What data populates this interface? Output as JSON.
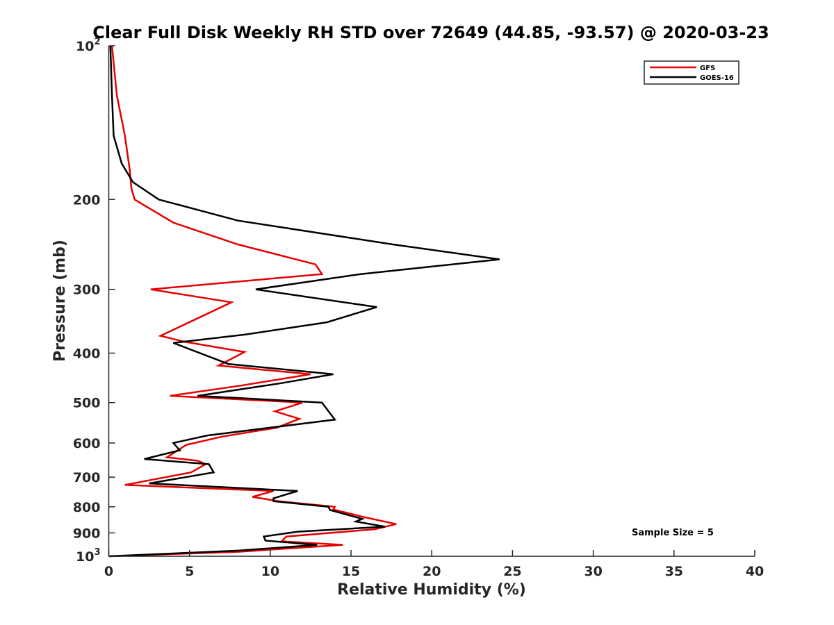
{
  "chart_data": {
    "type": "line",
    "title": "Clear Full Disk Weekly RH STD over 72649 (44.85, -93.57) @ 2020-03-23",
    "xlabel": "Relative Humidity (%)",
    "ylabel": "Pressure (mb)",
    "xlim": [
      0,
      40
    ],
    "ylim": [
      100,
      1000
    ],
    "y_scale": "log",
    "y_reversed": true,
    "x_ticks": [
      "0",
      "5",
      "10",
      "15",
      "20",
      "25",
      "30",
      "35",
      "40"
    ],
    "y_ticks": [
      {
        "value": 100,
        "base": "10",
        "exp": "2"
      },
      {
        "value": 200,
        "label": "200"
      },
      {
        "value": 300,
        "label": "300"
      },
      {
        "value": 400,
        "label": "400"
      },
      {
        "value": 500,
        "label": "500"
      },
      {
        "value": 600,
        "label": "600"
      },
      {
        "value": 700,
        "label": "700"
      },
      {
        "value": 800,
        "label": "800"
      },
      {
        "value": 900,
        "label": "900"
      },
      {
        "value": 1000,
        "base": "10",
        "exp": "3"
      }
    ],
    "grid": false,
    "legend_position": "top-right",
    "annotation": "Sample Size = 5",
    "series": [
      {
        "name": "GFS",
        "color": "#e60000",
        "points": [
          [
            0.2,
            100
          ],
          [
            0.5,
            125
          ],
          [
            1.0,
            150
          ],
          [
            1.3,
            175
          ],
          [
            1.4,
            190
          ],
          [
            1.6,
            200
          ],
          [
            4.0,
            222
          ],
          [
            8.0,
            245
          ],
          [
            12.8,
            268
          ],
          [
            13.2,
            280
          ],
          [
            2.6,
            300
          ],
          [
            7.6,
            318
          ],
          [
            3.2,
            370
          ],
          [
            4.7,
            380
          ],
          [
            8.4,
            398
          ],
          [
            6.8,
            423
          ],
          [
            12.5,
            440
          ],
          [
            8.2,
            463
          ],
          [
            3.8,
            485
          ],
          [
            12.0,
            500
          ],
          [
            10.3,
            520
          ],
          [
            11.8,
            538
          ],
          [
            10.4,
            560
          ],
          [
            7.0,
            583
          ],
          [
            4.8,
            605
          ],
          [
            3.6,
            640
          ],
          [
            5.5,
            650
          ],
          [
            6.0,
            660
          ],
          [
            5.1,
            685
          ],
          [
            1.0,
            725
          ],
          [
            10.2,
            745
          ],
          [
            8.9,
            765
          ],
          [
            10.5,
            780
          ],
          [
            14.0,
            800
          ],
          [
            13.9,
            810
          ],
          [
            15.8,
            838
          ],
          [
            17.8,
            865
          ],
          [
            16.5,
            885
          ],
          [
            11.0,
            915
          ],
          [
            10.7,
            935
          ],
          [
            14.5,
            950
          ],
          [
            8.0,
            980
          ],
          [
            0.0,
            1000
          ]
        ]
      },
      {
        "name": "GOES-16",
        "color": "#000000",
        "points": [
          [
            0.1,
            100
          ],
          [
            0.2,
            125
          ],
          [
            0.3,
            150
          ],
          [
            0.8,
            170
          ],
          [
            1.5,
            185
          ],
          [
            3.1,
            200
          ],
          [
            8.0,
            220
          ],
          [
            17.6,
            245
          ],
          [
            24.2,
            262
          ],
          [
            15.6,
            280
          ],
          [
            9.1,
            300
          ],
          [
            16.6,
            325
          ],
          [
            13.5,
            348
          ],
          [
            8.4,
            368
          ],
          [
            4.0,
            382
          ],
          [
            7.4,
            420
          ],
          [
            13.9,
            440
          ],
          [
            10.7,
            458
          ],
          [
            5.5,
            485
          ],
          [
            13.2,
            500
          ],
          [
            14.0,
            540
          ],
          [
            6.1,
            580
          ],
          [
            4.0,
            600
          ],
          [
            4.4,
            620
          ],
          [
            2.2,
            645
          ],
          [
            6.2,
            660
          ],
          [
            6.5,
            685
          ],
          [
            2.5,
            720
          ],
          [
            11.7,
            745
          ],
          [
            10.2,
            770
          ],
          [
            10.2,
            780
          ],
          [
            13.6,
            800
          ],
          [
            13.7,
            812
          ],
          [
            15.7,
            845
          ],
          [
            15.3,
            855
          ],
          [
            17.1,
            875
          ],
          [
            11.7,
            895
          ],
          [
            9.6,
            915
          ],
          [
            9.7,
            932
          ],
          [
            12.9,
            950
          ],
          [
            8.0,
            975
          ],
          [
            0.0,
            1000
          ]
        ]
      }
    ]
  }
}
